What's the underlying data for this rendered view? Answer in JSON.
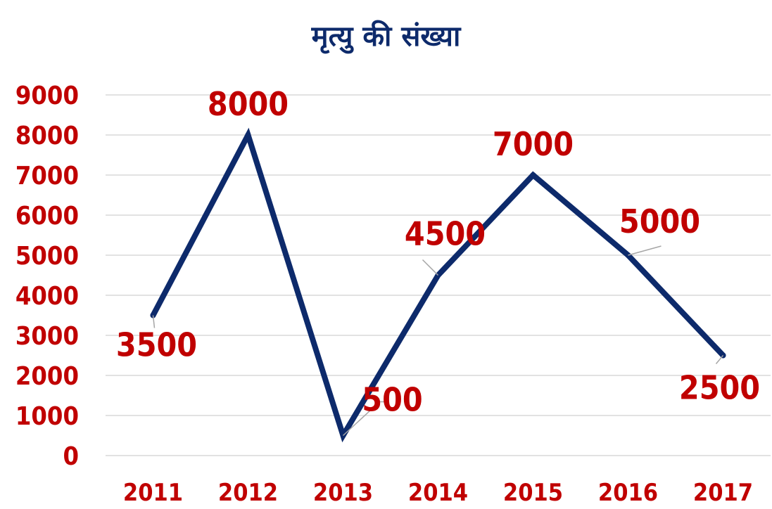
{
  "chart_data": {
    "type": "line",
    "title": "मृत्यु की संख्या",
    "categories": [
      "2011",
      "2012",
      "2013",
      "2014",
      "2015",
      "2016",
      "2017"
    ],
    "series": [
      {
        "values": [
          3500,
          8000,
          500,
          4500,
          7000,
          5000,
          2500
        ]
      }
    ],
    "data_labels": [
      "3500",
      "8000",
      "500",
      "4500",
      "7000",
      "5000",
      "2500"
    ],
    "ylim": [
      0,
      9000
    ],
    "yticks": [
      "0",
      "1000",
      "2000",
      "3000",
      "4000",
      "5000",
      "6000",
      "7000",
      "8000",
      "9000"
    ],
    "grid": true,
    "legend": "none",
    "colors": {
      "line": "#0d2a6b",
      "labels": "#c00000",
      "grid": "#d9d9d9",
      "leader": "#a6a6a6"
    }
  }
}
